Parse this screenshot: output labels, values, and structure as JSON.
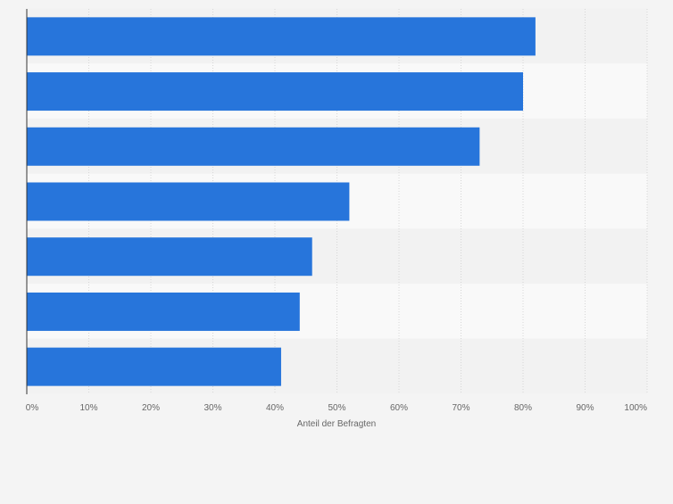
{
  "chart_data": {
    "type": "bar",
    "orientation": "horizontal",
    "title": "",
    "xlabel": "Anteil der Befragten",
    "ylabel": "",
    "xlim": [
      0,
      100
    ],
    "ticks": [
      "0%",
      "10%",
      "20%",
      "30%",
      "40%",
      "50%",
      "60%",
      "70%",
      "80%",
      "90%",
      "100%"
    ],
    "tick_values": [
      0,
      10,
      20,
      30,
      40,
      50,
      60,
      70,
      80,
      90,
      100
    ],
    "categories": [
      "",
      "",
      "",
      "",
      "",
      "",
      ""
    ],
    "values": [
      82,
      80,
      73,
      52,
      46,
      44,
      41
    ],
    "grid": true,
    "colors": {
      "bar": "#2775db",
      "background": "#f4f4f4",
      "band_light": "#f9f9f9",
      "band_dark": "#f2f2f2",
      "gridline": "#d6d6d6",
      "axis": "#333333",
      "tick_text": "#666666"
    }
  }
}
